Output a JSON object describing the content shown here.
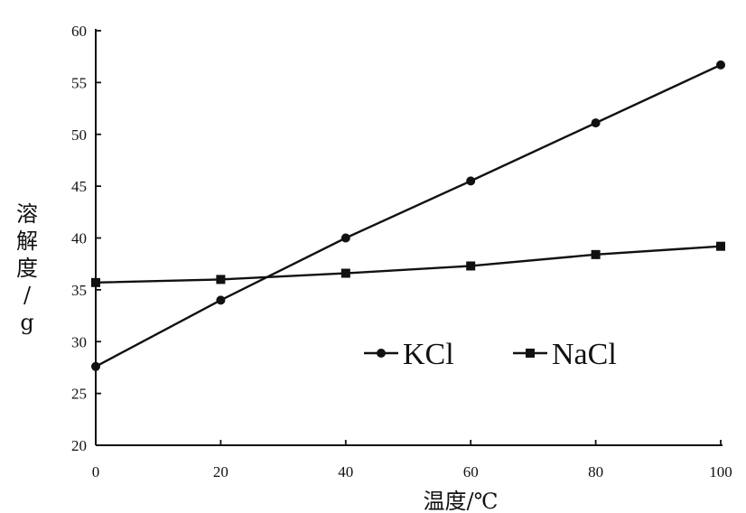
{
  "chart_data": {
    "type": "line",
    "title": "",
    "xlabel": "温度/℃",
    "ylabel": "溶解度/g",
    "xlim": [
      0,
      100
    ],
    "ylim": [
      20,
      60
    ],
    "x_ticks": [
      0,
      20,
      40,
      60,
      80,
      100
    ],
    "y_ticks": [
      20,
      25,
      30,
      35,
      40,
      45,
      50,
      55,
      60
    ],
    "grid": false,
    "legend_position": "center-right",
    "x": [
      0,
      20,
      40,
      60,
      80,
      100
    ],
    "series": [
      {
        "name": "KCl",
        "marker": "circle",
        "values": [
          27.6,
          34.0,
          40.0,
          45.5,
          51.1,
          56.7
        ]
      },
      {
        "name": "NaCl",
        "marker": "square",
        "values": [
          35.7,
          36.0,
          36.6,
          37.3,
          38.4,
          39.2
        ]
      }
    ]
  }
}
